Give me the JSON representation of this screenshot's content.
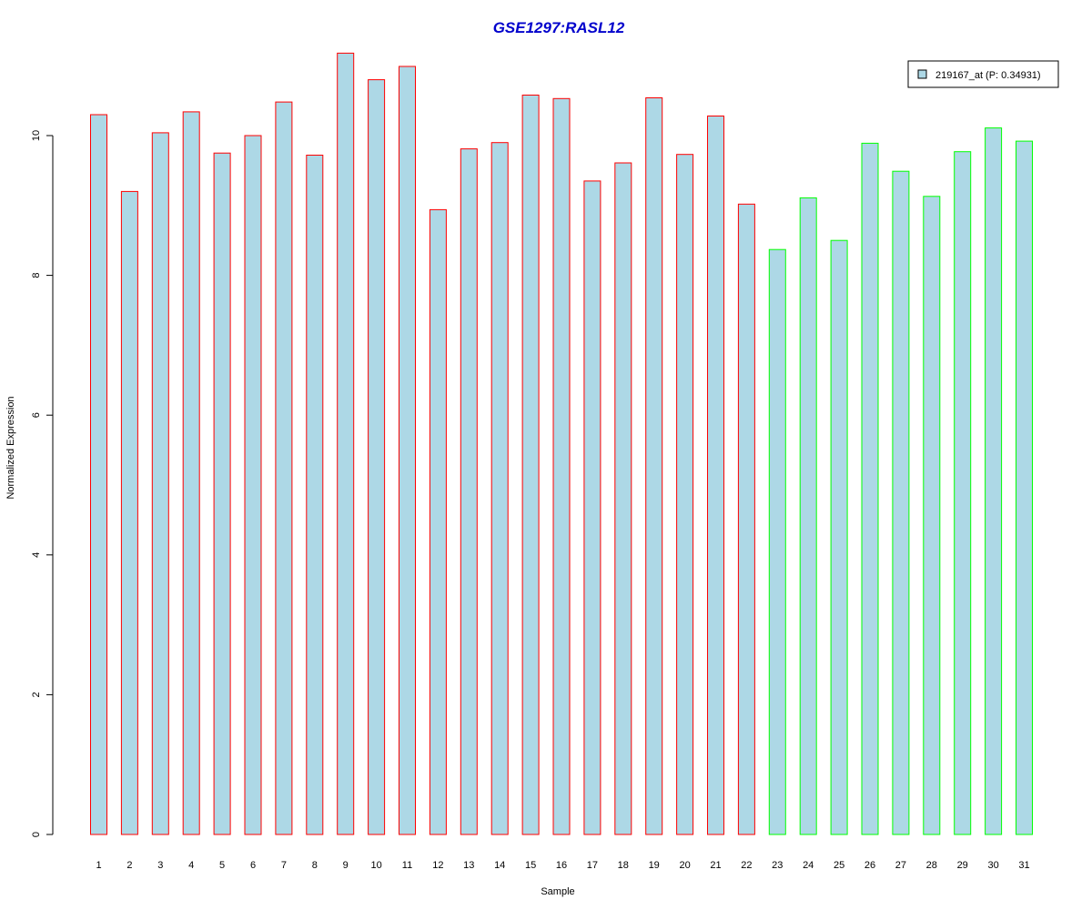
{
  "chart_data": {
    "type": "bar",
    "title": "GSE1297:RASL12",
    "xlabel": "Sample",
    "ylabel": "Normalized Expression",
    "ylim": [
      0,
      11.2
    ],
    "yticks": [
      0,
      2,
      4,
      6,
      8,
      10
    ],
    "grid": false,
    "legend_position": "top-right",
    "categories": [
      "1",
      "2",
      "3",
      "4",
      "5",
      "6",
      "7",
      "8",
      "9",
      "10",
      "11",
      "12",
      "13",
      "14",
      "15",
      "16",
      "17",
      "18",
      "19",
      "20",
      "21",
      "22",
      "23",
      "24",
      "25",
      "26",
      "27",
      "28",
      "29",
      "30",
      "31"
    ],
    "series": [
      {
        "name": "219167_at (P: 0.34931)",
        "fill": "#add8e6",
        "values": [
          10.3,
          9.2,
          10.04,
          10.34,
          9.75,
          10.0,
          10.48,
          9.72,
          11.18,
          10.8,
          10.99,
          8.94,
          9.81,
          9.9,
          10.58,
          10.53,
          9.35,
          9.61,
          10.54,
          9.73,
          10.28,
          9.02,
          8.37,
          9.11,
          8.5,
          9.89,
          9.49,
          9.13,
          9.77,
          10.11,
          9.92
        ]
      }
    ],
    "bar_outline_colors": [
      "#ff0000",
      "#ff0000",
      "#ff0000",
      "#ff0000",
      "#ff0000",
      "#ff0000",
      "#ff0000",
      "#ff0000",
      "#ff0000",
      "#ff0000",
      "#ff0000",
      "#ff0000",
      "#ff0000",
      "#ff0000",
      "#ff0000",
      "#ff0000",
      "#ff0000",
      "#ff0000",
      "#ff0000",
      "#ff0000",
      "#ff0000",
      "#ff0000",
      "#00ff00",
      "#00ff00",
      "#00ff00",
      "#00ff00",
      "#00ff00",
      "#00ff00",
      "#00ff00",
      "#00ff00",
      "#00ff00"
    ],
    "title_color": "#0000cc"
  }
}
